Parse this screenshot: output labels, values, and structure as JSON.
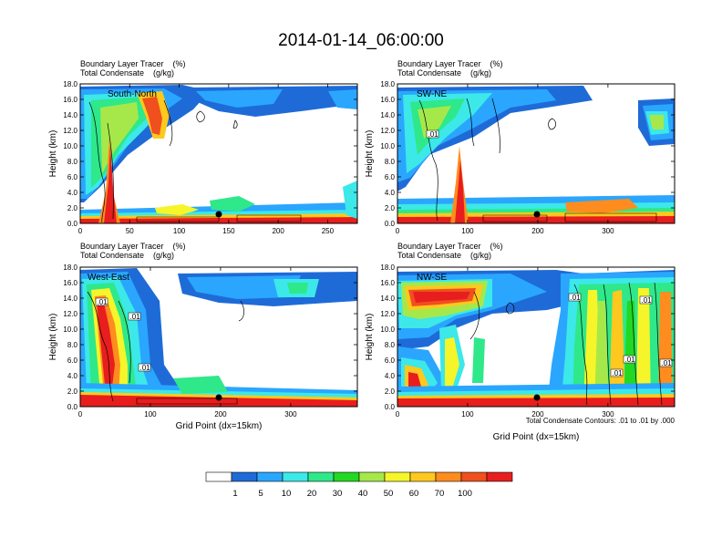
{
  "title": "2014-01-14_06:00:00",
  "colors": {
    "white": "#ffffff",
    "c1": "#1e6bd8",
    "c5": "#2aa6ff",
    "c10": "#3ce8e8",
    "c20": "#2ee88a",
    "c30": "#22d822",
    "c40": "#a6e84a",
    "c50": "#f5f52a",
    "c60": "#ffc81e",
    "c70": "#ff8c1e",
    "c80": "#f0501e",
    "c100": "#e81e1e"
  },
  "colorbar": {
    "labels": [
      "1",
      "5",
      "10",
      "20",
      "30",
      "40",
      "50",
      "60",
      "70",
      "100"
    ],
    "colors": [
      "#ffffff",
      "#1e6bd8",
      "#2aa6ff",
      "#3ce8e8",
      "#2ee88a",
      "#22d822",
      "#a6e84a",
      "#f5f52a",
      "#ffc81e",
      "#ff8c1e",
      "#f0501e",
      "#e81e1e"
    ]
  },
  "contour_note": "Total Condensate Contours: .01 to .01 by .000",
  "chart_data": [
    {
      "type": "heatmap",
      "name": "South-North",
      "label_line1": "Boundary Layer Tracer    (%)",
      "label_line2": "Total Condensate    (g/kg)",
      "ylabel": "Height (km)",
      "xlabel": "",
      "xlim": [
        0,
        280
      ],
      "ylim": [
        0,
        18
      ],
      "xticks": [
        "0",
        "50",
        "100",
        "150",
        "200",
        "250"
      ],
      "xtick_values": [
        0,
        50,
        100,
        150,
        200,
        250
      ],
      "yticks": [
        "0.0",
        "2.0",
        "4.0",
        "6.0",
        "8.0",
        "10.0",
        "12.0",
        "14.0",
        "16.0",
        "18.0"
      ],
      "marker": {
        "x": 140,
        "y": 1.1
      },
      "contour_labels": []
    },
    {
      "type": "heatmap",
      "name": "SW-NE",
      "label_line1": "Boundary Layer Tracer    (%)",
      "label_line2": "Total Condensate    (g/kg)",
      "ylabel": "Height (km)",
      "xlabel": "",
      "xlim": [
        0,
        395
      ],
      "ylim": [
        0,
        18
      ],
      "xticks": [
        "0",
        "100",
        "200",
        "300"
      ],
      "xtick_values": [
        0,
        100,
        200,
        300
      ],
      "yticks": [
        "0.0",
        "2.0",
        "4.0",
        "6.0",
        "8.0",
        "10.0",
        "12.0",
        "14.0",
        "16.0",
        "18.0"
      ],
      "marker": {
        "x": 200,
        "y": 1.1
      },
      "contour_labels": [
        ".01"
      ]
    },
    {
      "type": "heatmap",
      "name": "West-East",
      "label_line1": "Boundary Layer Tracer    (%)",
      "label_line2": "Total Condensate    (g/kg)",
      "ylabel": "Height (km)",
      "xlabel": "Grid Point (dx=15km)",
      "xlim": [
        0,
        395
      ],
      "ylim": [
        0,
        18
      ],
      "xticks": [
        "0",
        "100",
        "200",
        "300"
      ],
      "xtick_values": [
        0,
        100,
        200,
        300
      ],
      "yticks": [
        "0.0",
        "2.0",
        "4.0",
        "6.0",
        "8.0",
        "10.0",
        "12.0",
        "14.0",
        "16.0",
        "18.0"
      ],
      "marker": {
        "x": 200,
        "y": 1.1
      },
      "contour_labels": [
        ".01",
        ".01",
        ".01"
      ]
    },
    {
      "type": "heatmap",
      "name": "NW-SE",
      "label_line1": "Boundary Layer Tracer    (%)",
      "label_line2": "Total Condensate    (g/kg)",
      "ylabel": "Height (km)",
      "xlabel": "Grid Point (dx=15km)",
      "xlim": [
        0,
        395
      ],
      "ylim": [
        0,
        18
      ],
      "xticks": [
        "0",
        "100",
        "200",
        "300"
      ],
      "xtick_values": [
        0,
        100,
        200,
        300
      ],
      "yticks": [
        "0.0",
        "2.0",
        "4.0",
        "6.0",
        "8.0",
        "10.0",
        "12.0",
        "14.0",
        "16.0",
        "18.0"
      ],
      "marker": {
        "x": 200,
        "y": 1.1
      },
      "contour_labels": [
        ".01",
        ".01",
        ".01",
        ".01",
        ".01"
      ]
    }
  ]
}
